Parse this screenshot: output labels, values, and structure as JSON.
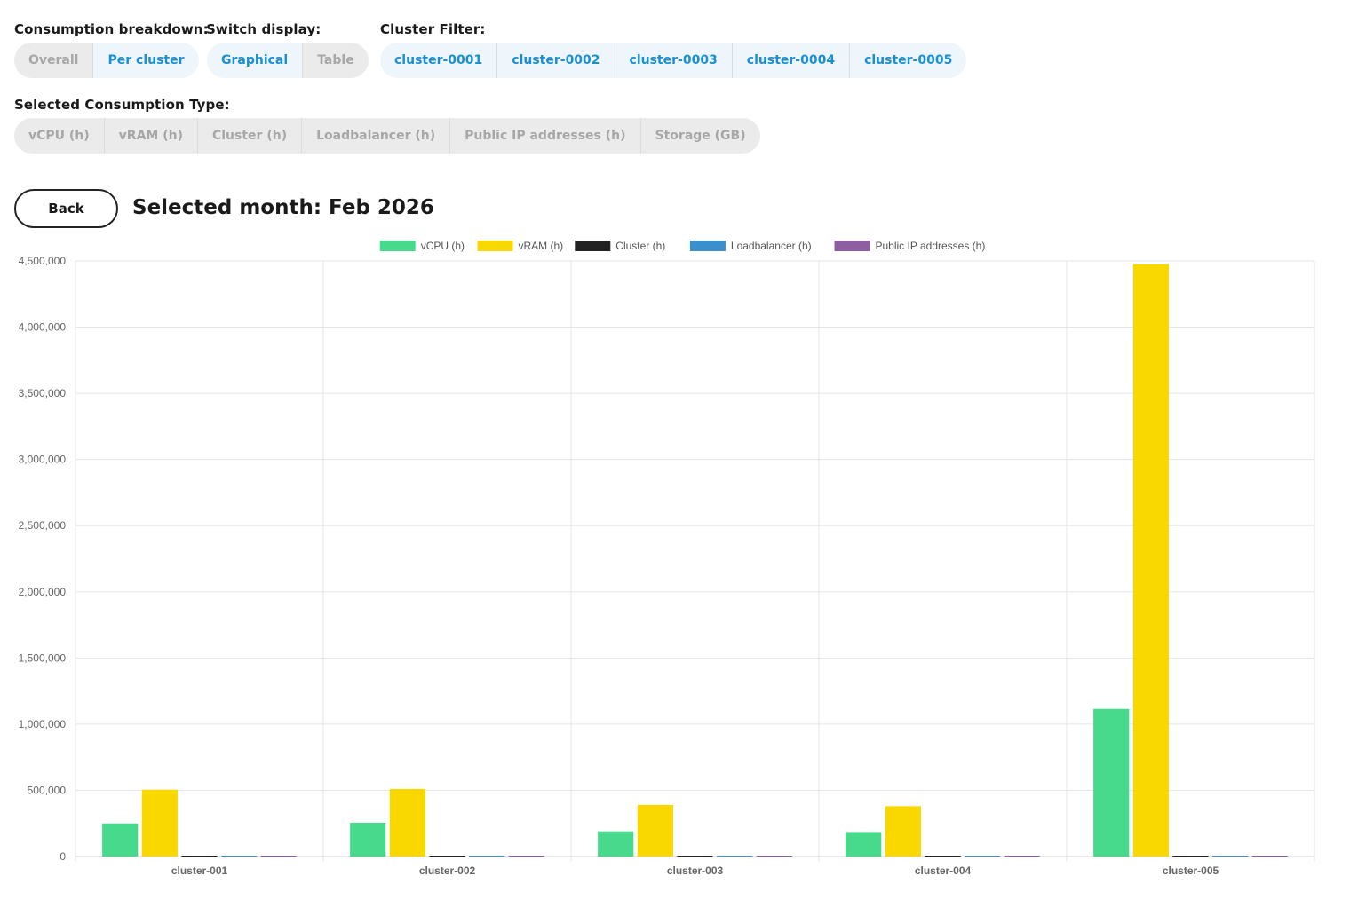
{
  "controls": {
    "breakdown": {
      "label": "Consumption breakdown:",
      "options": [
        {
          "label": "Overall",
          "active": false
        },
        {
          "label": "Per cluster",
          "active": true
        }
      ]
    },
    "display": {
      "label": "Switch display:",
      "options": [
        {
          "label": "Graphical",
          "active": true
        },
        {
          "label": "Table",
          "active": false
        }
      ]
    },
    "cluster_filter": {
      "label": "Cluster Filter:",
      "options": [
        {
          "label": "cluster-0001",
          "active": true
        },
        {
          "label": "cluster-0002",
          "active": true
        },
        {
          "label": "cluster-0003",
          "active": true
        },
        {
          "label": "cluster-0004",
          "active": true
        },
        {
          "label": "cluster-0005",
          "active": true
        }
      ]
    },
    "consumption_type": {
      "label": "Selected Consumption Type:",
      "options": [
        {
          "label": "vCPU (h)",
          "active": false
        },
        {
          "label": "vRAM (h)",
          "active": false
        },
        {
          "label": "Cluster (h)",
          "active": false
        },
        {
          "label": "Loadbalancer (h)",
          "active": false
        },
        {
          "label": "Public IP addresses (h)",
          "active": false
        },
        {
          "label": "Storage (GB)",
          "active": false
        }
      ]
    }
  },
  "back_label": "Back",
  "month_title": "Selected month: Feb 2026",
  "chart_data": {
    "type": "bar",
    "title": "",
    "xlabel": "",
    "ylabel": "",
    "categories": [
      "cluster-001",
      "cluster-002",
      "cluster-003",
      "cluster-004",
      "cluster-005"
    ],
    "series": [
      {
        "name": "vCPU (h)",
        "color": "#47d98c",
        "values": [
          250000,
          255000,
          190000,
          185000,
          1115000
        ]
      },
      {
        "name": "vRAM (h)",
        "color": "#f9d700",
        "values": [
          505000,
          510000,
          390000,
          380000,
          4475000
        ]
      },
      {
        "name": "Cluster (h)",
        "color": "#222222",
        "values": [
          720,
          720,
          720,
          720,
          720
        ]
      },
      {
        "name": "Loadbalancer (h)",
        "color": "#3a8fcf",
        "values": [
          720,
          720,
          720,
          720,
          720
        ]
      },
      {
        "name": "Public IP addresses (h)",
        "color": "#8e5ea2",
        "values": [
          720,
          720,
          720,
          720,
          720
        ]
      }
    ],
    "ylim": [
      0,
      4500000
    ],
    "yticks": [
      "4,500,000",
      "4,000,000",
      "3,500,000",
      "3,000,000",
      "2,500,000",
      "2,000,000",
      "1,500,000",
      "1,000,000",
      "500,000",
      "0"
    ],
    "grid": true,
    "legend": "top-center"
  }
}
